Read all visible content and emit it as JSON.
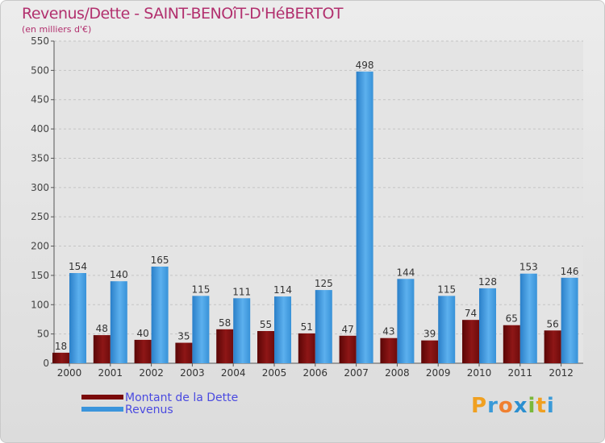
{
  "chart_data": {
    "type": "bar",
    "title": "Revenus/Dette - SAINT-BENOîT-D'HéBERTOT",
    "subtitle": "(en milliers d'€)",
    "categories": [
      "2000",
      "2001",
      "2002",
      "2003",
      "2004",
      "2005",
      "2006",
      "2007",
      "2008",
      "2009",
      "2010",
      "2011",
      "2012"
    ],
    "series": [
      {
        "name": "Montant de la Dette",
        "color": "#7a0a0a",
        "values": [
          18,
          48,
          40,
          35,
          58,
          55,
          51,
          47,
          43,
          39,
          74,
          65,
          56
        ]
      },
      {
        "name": "Revenus",
        "color": "#3b95dc",
        "values": [
          154,
          140,
          165,
          115,
          111,
          114,
          125,
          498,
          144,
          115,
          128,
          153,
          146
        ]
      }
    ],
    "ylim": [
      0,
      550
    ],
    "yticks": [
      "0",
      "50",
      "100",
      "150",
      "200",
      "250",
      "300",
      "350",
      "400",
      "450",
      "500",
      "550"
    ],
    "grid": true
  },
  "legend": {
    "items": [
      {
        "label": "Montant de la Dette",
        "color": "#7a0a0a"
      },
      {
        "label": "Revenus",
        "color": "#3b95dc"
      }
    ]
  },
  "logo": {
    "letters": [
      "P",
      "r",
      "o",
      "x",
      "i",
      "t",
      "i"
    ],
    "colors": [
      "#f0a020",
      "#3a9ad8",
      "#f08030",
      "#2b8fd0",
      "#7ab83a",
      "#f0a020",
      "#3a9ad8"
    ]
  }
}
